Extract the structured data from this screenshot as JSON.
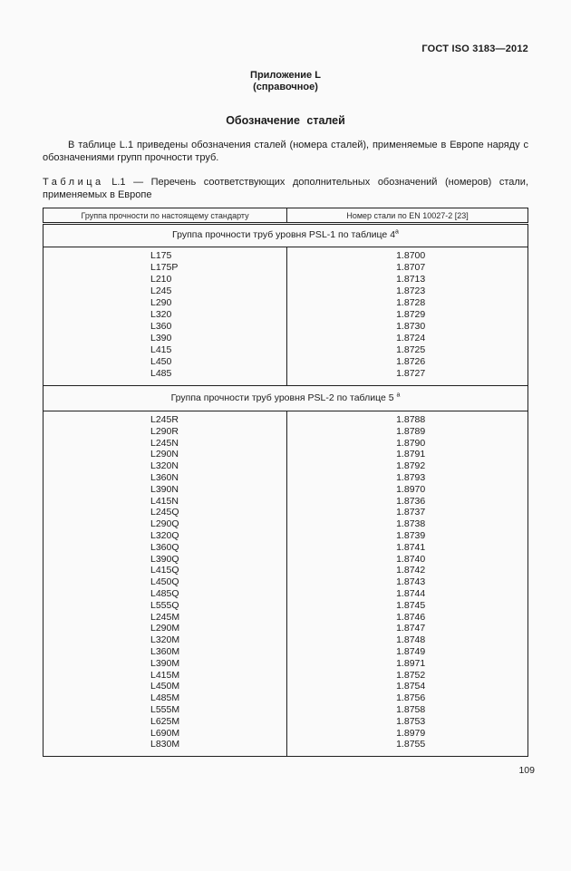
{
  "page": {
    "doc_ref": "ГОСТ ISO 3183—2012",
    "appendix_label": "Приложение L",
    "appendix_type": "(справочное)",
    "title": "Обозначение сталей",
    "intro_paragraph": "В таблице L.1 приведены обозначения сталей (номера сталей), применяемые в Европе наряду с обозначениями групп прочности труб.",
    "page_number": "109"
  },
  "table_caption": {
    "label": "Таблица",
    "text": "L.1 — Перечень соответствующих дополнительных обозначений (номеров) стали, применяемых в Европе"
  },
  "table": {
    "columns": [
      "Группа прочности по настоящему стандарту",
      "Номер стали по EN 10027-2 [23]"
    ],
    "sections": [
      {
        "title": "Группа прочности труб уровня PSL-1 по таблице 4",
        "footnote_mark": "а",
        "rows": [
          [
            "L175",
            "1.8700"
          ],
          [
            "L175P",
            "1.8707"
          ],
          [
            "L210",
            "1.8713"
          ],
          [
            "L245",
            "1.8723"
          ],
          [
            "L290",
            "1.8728"
          ],
          [
            "L320",
            "1.8729"
          ],
          [
            "L360",
            "1.8730"
          ],
          [
            "L390",
            "1.8724"
          ],
          [
            "L415",
            "1.8725"
          ],
          [
            "L450",
            "1.8726"
          ],
          [
            "L485",
            "1.8727"
          ]
        ]
      },
      {
        "title": "Группа прочности труб уровня PSL-2 по таблице 5 ",
        "footnote_mark": "а",
        "rows": [
          [
            "L245R",
            "1.8788"
          ],
          [
            "L290R",
            "1.8789"
          ],
          [
            "L245N",
            "1.8790"
          ],
          [
            "L290N",
            "1.8791"
          ],
          [
            "L320N",
            "1.8792"
          ],
          [
            "L360N",
            "1.8793"
          ],
          [
            "L390N",
            "1.8970"
          ],
          [
            "L415N",
            "1.8736"
          ],
          [
            "L245Q",
            "1.8737"
          ],
          [
            "L290Q",
            "1.8738"
          ],
          [
            "L320Q",
            "1.8739"
          ],
          [
            "L360Q",
            "1.8741"
          ],
          [
            "L390Q",
            "1.8740"
          ],
          [
            "L415Q",
            "1.8742"
          ],
          [
            "L450Q",
            "1.8743"
          ],
          [
            "L485Q",
            "1.8744"
          ],
          [
            "L555Q",
            "1.8745"
          ],
          [
            "L245M",
            "1.8746"
          ],
          [
            "L290M",
            "1.8747"
          ],
          [
            "L320M",
            "1.8748"
          ],
          [
            "L360M",
            "1.8749"
          ],
          [
            "L390M",
            "1.8971"
          ],
          [
            "L415M",
            "1.8752"
          ],
          [
            "L450M",
            "1.8754"
          ],
          [
            "L485M",
            "1.8756"
          ],
          [
            "L555M",
            "1.8758"
          ],
          [
            "L625M",
            "1.8753"
          ],
          [
            "L690M",
            "1.8979"
          ],
          [
            "L830M",
            "1.8755"
          ]
        ]
      }
    ]
  }
}
